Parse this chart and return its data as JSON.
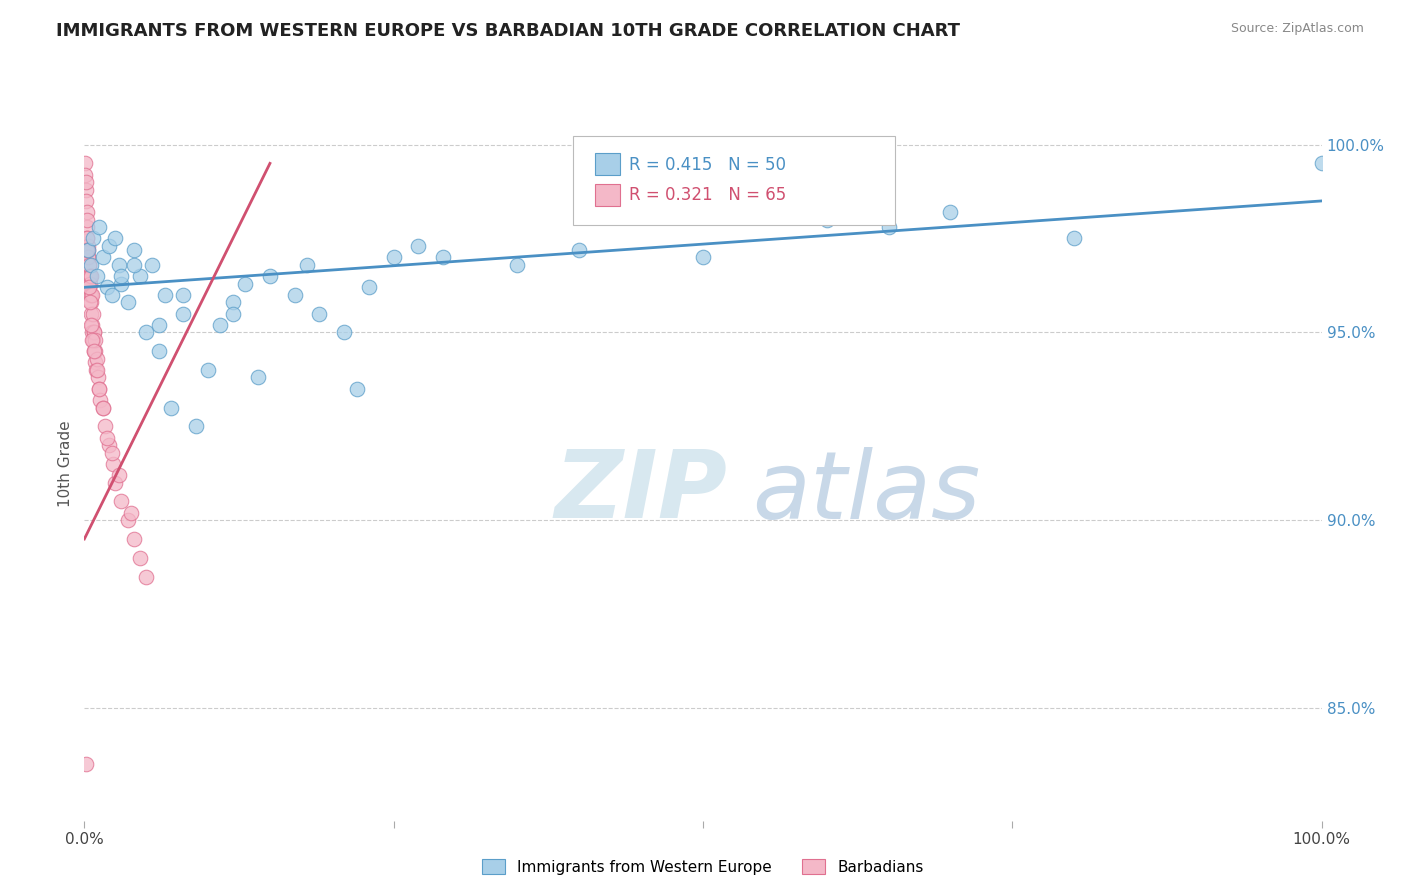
{
  "title": "IMMIGRANTS FROM WESTERN EUROPE VS BARBADIAN 10TH GRADE CORRELATION CHART",
  "source": "Source: ZipAtlas.com",
  "ylabel": "10th Grade",
  "right_yticklabels": [
    "85.0%",
    "90.0%",
    "95.0%",
    "100.0%"
  ],
  "right_ytick_vals": [
    85.0,
    90.0,
    95.0,
    100.0
  ],
  "legend_blue_label": "Immigrants from Western Europe",
  "legend_pink_label": "Barbadians",
  "blue_R": 0.415,
  "blue_N": 50,
  "pink_R": 0.321,
  "pink_N": 65,
  "blue_color": "#a8cfe8",
  "pink_color": "#f4b8c8",
  "blue_edge_color": "#5b9ec9",
  "pink_edge_color": "#e07090",
  "blue_line_color": "#4a90c4",
  "pink_line_color": "#d05070",
  "watermark_zip": "ZIP",
  "watermark_atlas": "atlas",
  "ymin": 82.0,
  "ymax": 101.0,
  "xmin": 0.0,
  "xmax": 100.0,
  "blue_scatter_x": [
    0.3,
    0.5,
    0.7,
    1.0,
    1.2,
    1.5,
    1.8,
    2.0,
    2.2,
    2.5,
    2.8,
    3.0,
    3.5,
    4.0,
    4.5,
    5.0,
    5.5,
    6.0,
    6.5,
    7.0,
    8.0,
    9.0,
    10.0,
    11.0,
    12.0,
    13.0,
    14.0,
    15.0,
    17.0,
    19.0,
    21.0,
    23.0,
    25.0,
    27.0,
    29.0,
    35.0,
    40.0,
    50.0,
    60.0,
    65.0,
    70.0,
    80.0,
    100.0,
    4.0,
    6.0,
    3.0,
    8.0,
    12.0,
    18.0,
    22.0
  ],
  "blue_scatter_y": [
    97.2,
    96.8,
    97.5,
    96.5,
    97.8,
    97.0,
    96.2,
    97.3,
    96.0,
    97.5,
    96.8,
    96.3,
    95.8,
    97.2,
    96.5,
    95.0,
    96.8,
    94.5,
    96.0,
    93.0,
    95.5,
    92.5,
    94.0,
    95.2,
    95.8,
    96.3,
    93.8,
    96.5,
    96.0,
    95.5,
    95.0,
    96.2,
    97.0,
    97.3,
    97.0,
    96.8,
    97.2,
    97.0,
    98.0,
    97.8,
    98.2,
    97.5,
    99.5,
    96.8,
    95.2,
    96.5,
    96.0,
    95.5,
    96.8,
    93.5
  ],
  "pink_scatter_x": [
    0.05,
    0.08,
    0.1,
    0.12,
    0.15,
    0.18,
    0.2,
    0.22,
    0.25,
    0.28,
    0.3,
    0.32,
    0.35,
    0.38,
    0.4,
    0.42,
    0.45,
    0.48,
    0.5,
    0.52,
    0.55,
    0.6,
    0.65,
    0.7,
    0.75,
    0.8,
    0.85,
    0.9,
    0.95,
    1.0,
    1.1,
    1.2,
    1.3,
    1.5,
    1.7,
    2.0,
    2.3,
    2.5,
    3.0,
    3.5,
    4.0,
    4.5,
    5.0,
    0.3,
    0.4,
    0.5,
    0.6,
    0.7,
    0.8,
    0.9,
    1.0,
    1.2,
    1.5,
    0.2,
    0.25,
    0.35,
    0.45,
    0.55,
    0.65,
    0.75,
    1.8,
    2.2,
    2.8,
    3.8,
    0.15
  ],
  "pink_scatter_y": [
    99.5,
    99.2,
    98.8,
    99.0,
    98.5,
    98.2,
    97.8,
    98.0,
    97.5,
    97.2,
    97.0,
    97.3,
    96.8,
    96.5,
    96.2,
    96.5,
    96.0,
    96.3,
    95.8,
    96.0,
    95.5,
    95.2,
    95.0,
    94.8,
    95.0,
    94.5,
    94.2,
    94.5,
    94.0,
    94.3,
    93.8,
    93.5,
    93.2,
    93.0,
    92.5,
    92.0,
    91.5,
    91.0,
    90.5,
    90.0,
    89.5,
    89.0,
    88.5,
    97.0,
    96.8,
    96.5,
    96.0,
    95.5,
    95.0,
    94.8,
    94.0,
    93.5,
    93.0,
    97.5,
    97.2,
    96.2,
    95.8,
    95.2,
    94.8,
    94.5,
    92.2,
    91.8,
    91.2,
    90.2,
    83.5
  ],
  "blue_trendline_x": [
    0,
    100
  ],
  "blue_trendline_y": [
    96.2,
    98.5
  ],
  "pink_trendline_x": [
    0,
    15
  ],
  "pink_trendline_y": [
    89.5,
    99.5
  ]
}
